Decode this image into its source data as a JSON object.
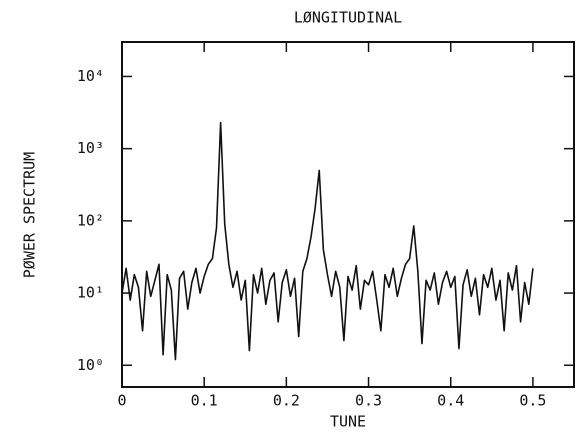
{
  "chart_data": {
    "type": "line",
    "title": "LØNGITUDINAL",
    "x_label": "TUNE",
    "y_label": "PØWER SPECTRUM",
    "x": [
      0,
      0.005,
      0.01,
      0.015,
      0.02,
      0.025,
      0.03,
      0.035,
      0.04,
      0.045,
      0.05,
      0.055,
      0.06,
      0.065,
      0.07,
      0.075,
      0.08,
      0.085,
      0.09,
      0.095,
      0.1,
      0.105,
      0.11,
      0.115,
      0.12,
      0.125,
      0.13,
      0.135,
      0.14,
      0.145,
      0.15,
      0.155,
      0.16,
      0.165,
      0.17,
      0.175,
      0.18,
      0.185,
      0.19,
      0.195,
      0.2,
      0.205,
      0.21,
      0.215,
      0.22,
      0.225,
      0.23,
      0.235,
      0.24,
      0.245,
      0.25,
      0.255,
      0.26,
      0.265,
      0.27,
      0.275,
      0.28,
      0.285,
      0.29,
      0.295,
      0.3,
      0.305,
      0.31,
      0.315,
      0.32,
      0.325,
      0.33,
      0.335,
      0.34,
      0.345,
      0.35,
      0.355,
      0.36,
      0.365,
      0.37,
      0.375,
      0.38,
      0.385,
      0.39,
      0.395,
      0.4,
      0.405,
      0.41,
      0.415,
      0.42,
      0.425,
      0.43,
      0.435,
      0.44,
      0.445,
      0.45,
      0.455,
      0.46,
      0.465,
      0.47,
      0.475,
      0.48,
      0.485,
      0.49,
      0.495,
      0.5
    ],
    "values": [
      10,
      22,
      8,
      18,
      12,
      3,
      20,
      9,
      15,
      25,
      1.4,
      18,
      11,
      1.2,
      16,
      20,
      6,
      14,
      22,
      10,
      17,
      25,
      30,
      80,
      2300,
      90,
      25,
      12,
      20,
      8,
      15,
      1.6,
      18,
      10,
      22,
      7,
      15,
      19,
      4,
      14,
      21,
      9,
      16,
      2.5,
      20,
      30,
      60,
      150,
      500,
      40,
      18,
      9,
      20,
      12,
      2.2,
      17,
      11,
      24,
      6,
      15,
      13,
      20,
      8,
      3,
      18,
      12,
      22,
      9,
      16,
      25,
      30,
      85,
      20,
      2,
      15,
      11,
      19,
      7,
      14,
      20,
      12,
      17,
      1.7,
      13,
      21,
      9,
      16,
      5,
      18,
      12,
      22,
      8,
      15,
      3,
      19,
      11,
      24,
      4,
      14,
      7,
      22
    ],
    "color": "#111111",
    "ylog": true,
    "xlim": [
      0,
      0.55
    ],
    "xticks": [
      0,
      0.1,
      0.2,
      0.3,
      0.4,
      0.5
    ],
    "ylim": [
      0.5,
      30000
    ],
    "yticks": [
      {
        "value": 1,
        "label": "10⁰"
      },
      {
        "value": 10,
        "label": "10¹"
      },
      {
        "value": 100,
        "label": "10²"
      },
      {
        "value": 1000,
        "label": "10³"
      },
      {
        "value": 10000,
        "label": "10⁴"
      }
    ],
    "grid": false
  }
}
